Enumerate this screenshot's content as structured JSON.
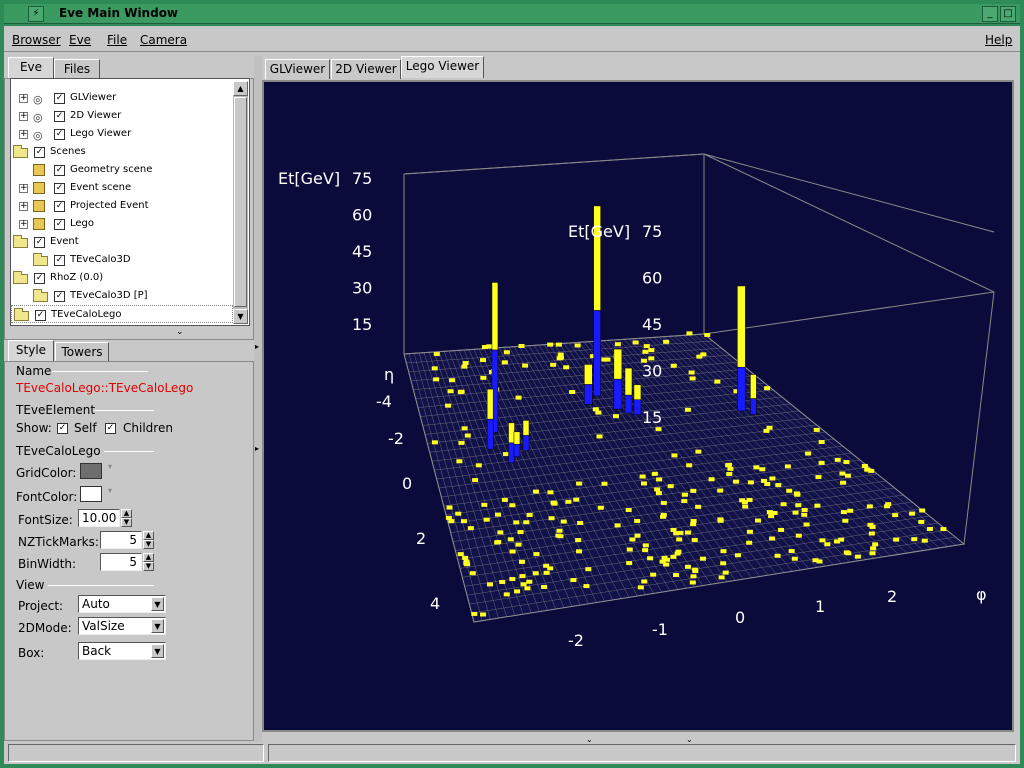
{
  "window": {
    "title": "Eve Main Window",
    "minimize": "_",
    "maximize": "□"
  },
  "menubar": {
    "browser": "Browser",
    "eve": "Eve",
    "file": "File",
    "camera": "Camera",
    "help": "Help"
  },
  "left_tabs": {
    "eve": "Eve",
    "files": "Files"
  },
  "tree": [
    {
      "label": "GLViewer",
      "icon": "eye",
      "indent": 1,
      "expander": "+"
    },
    {
      "label": "2D Viewer",
      "icon": "eye",
      "indent": 1,
      "expander": "+"
    },
    {
      "label": "Lego Viewer",
      "icon": "eye",
      "indent": 1,
      "expander": "+"
    },
    {
      "label": "Scenes",
      "icon": "folder",
      "indent": 0,
      "expander": ""
    },
    {
      "label": "Geometry scene",
      "icon": "box",
      "indent": 1,
      "expander": ""
    },
    {
      "label": "Event scene",
      "icon": "box",
      "indent": 1,
      "expander": "+"
    },
    {
      "label": "Projected Event",
      "icon": "box",
      "indent": 1,
      "expander": "+"
    },
    {
      "label": "Lego",
      "icon": "box",
      "indent": 1,
      "expander": "+"
    },
    {
      "label": "Event",
      "icon": "folder",
      "indent": 0,
      "expander": ""
    },
    {
      "label": "TEveCalo3D",
      "icon": "folder",
      "indent": 1,
      "expander": ""
    },
    {
      "label": "RhoZ (0.0)",
      "icon": "folder",
      "indent": 0,
      "expander": ""
    },
    {
      "label": "TEveCalo3D [P]",
      "icon": "folder",
      "indent": 1,
      "expander": ""
    },
    {
      "label": "TEveCaloLego",
      "icon": "folder",
      "indent": 0,
      "expander": ""
    }
  ],
  "props_tabs": {
    "style": "Style",
    "towers": "Towers"
  },
  "props": {
    "name_label": "Name",
    "name_value": "TEveCaloLego::TEveCaloLego",
    "element_section": "TEveElement",
    "show_label": "Show:",
    "self_label": "Self",
    "children_label": "Children",
    "lego_section": "TEveCaloLego",
    "grid_color_label": "GridColor:",
    "font_color_label": "FontColor:",
    "font_size_label": "FontSize:",
    "font_size_value": "10.00",
    "nz_label": "NZTickMarks:",
    "nz_value": "5",
    "binwidth_label": "BinWidth:",
    "binwidth_value": "5",
    "view_section": "View",
    "project_label": "Project:",
    "project_value": "Auto",
    "mode2d_label": "2DMode:",
    "mode2d_value": "ValSize",
    "box_label": "Box:",
    "box_value": "Back"
  },
  "colors": {
    "grid": "#6e6e6e",
    "font": "#ffffff",
    "name_value": "#e00000",
    "viewer_bg": "#0b0b3b",
    "tower_yellow": "#ffff20",
    "tower_blue": "#1a1aff"
  },
  "viewer_tabs": {
    "gl": "GLViewer",
    "twod": "2D Viewer",
    "lego": "Lego Viewer"
  },
  "lego": {
    "et_back": "Et[GeV]",
    "et_front": "Et[GeV]",
    "eta_label": "η",
    "phi_label": "φ",
    "z_ticks_back": [
      "75",
      "60",
      "45",
      "30",
      "15"
    ],
    "z_ticks_front": [
      "75",
      "60",
      "45",
      "30",
      "15"
    ],
    "eta_ticks": [
      "-4",
      "-2",
      "0",
      "2",
      "4"
    ],
    "phi_ticks": [
      "-2",
      "-1",
      "0",
      "1",
      "2"
    ]
  }
}
